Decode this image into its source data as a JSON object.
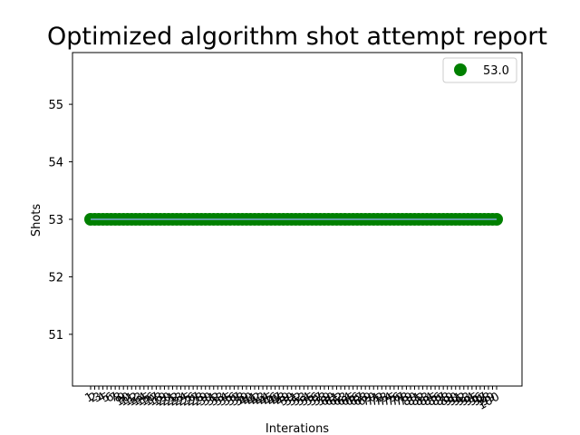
{
  "chart_data": {
    "type": "scatter",
    "title": "Optimized algorithm shot attempt report",
    "xlabel": "Interations",
    "ylabel": "Shots",
    "x_start": 1,
    "x_end": 100,
    "ylim": [
      50.1,
      55.9
    ],
    "yticks": [
      51,
      52,
      53,
      54,
      55
    ],
    "series": [
      {
        "name": "53.0",
        "value": 53.0,
        "color": "#008000",
        "line_color": "#5f9ea0"
      }
    ],
    "legend": "top-right",
    "grid": false
  }
}
